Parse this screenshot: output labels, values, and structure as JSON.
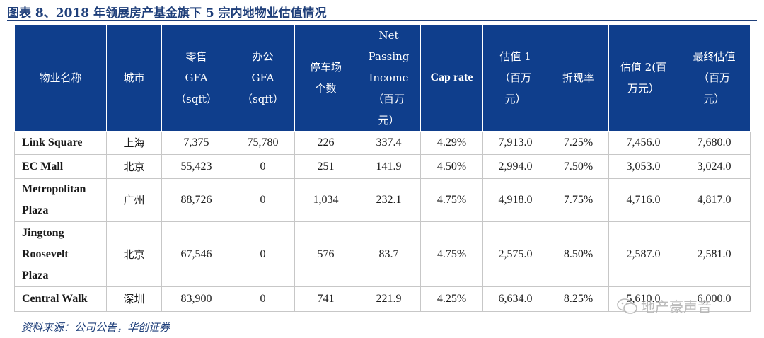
{
  "figure_title": "图表 8、2018 年领展房产基金旗下 5 宗内地物业估值情况",
  "headers": [
    {
      "text": "物业名称",
      "en": false
    },
    {
      "text": "城市",
      "en": false
    },
    {
      "text": "零售\nGFA\n（sqft）",
      "en": false
    },
    {
      "text": "办公\nGFA\n（sqft）",
      "en": false
    },
    {
      "text": "停车场\n个数",
      "en": false
    },
    {
      "text": "Net\nPassing\nIncome\n（百万\n元）",
      "en": false
    },
    {
      "text": "Cap rate",
      "en": true
    },
    {
      "text": "估值 1\n（百万\n元）",
      "en": false
    },
    {
      "text": "折现率",
      "en": false
    },
    {
      "text": "估值 2(百\n万元）",
      "en": false
    },
    {
      "text": "最终估值\n（百万\n元）",
      "en": false
    }
  ],
  "rows": [
    {
      "name": "Link Square",
      "city": "上海",
      "retail_gfa": "7,375",
      "office_gfa": "75,780",
      "parking": "226",
      "npi": "337.4",
      "cap_rate": "4.29%",
      "val1": "7,913.0",
      "discount": "7.25%",
      "val2": "7,456.0",
      "final": "7,680.0"
    },
    {
      "name": "EC Mall",
      "city": "北京",
      "retail_gfa": "55,423",
      "office_gfa": "0",
      "parking": "251",
      "npi": "141.9",
      "cap_rate": "4.50%",
      "val1": "2,994.0",
      "discount": "7.50%",
      "val2": "3,053.0",
      "final": "3,024.0"
    },
    {
      "name": "Metropolitan\nPlaza",
      "city": "广州",
      "retail_gfa": "88,726",
      "office_gfa": "0",
      "parking": "1,034",
      "npi": "232.1",
      "cap_rate": "4.75%",
      "val1": "4,918.0",
      "discount": "7.75%",
      "val2": "4,716.0",
      "final": "4,817.0"
    },
    {
      "name": "Jingtong\nRoosevelt\nPlaza",
      "city": "北京",
      "retail_gfa": "67,546",
      "office_gfa": "0",
      "parking": "576",
      "npi": "83.7",
      "cap_rate": "4.75%",
      "val1": "2,575.0",
      "discount": "8.50%",
      "val2": "2,587.0",
      "final": "2,581.0"
    },
    {
      "name": "Central Walk",
      "city": "深圳",
      "retail_gfa": "83,900",
      "office_gfa": "0",
      "parking": "741",
      "npi": "221.9",
      "cap_rate": "4.25%",
      "val1": "6,634.0",
      "discount": "8.25%",
      "val2": "5,610.0",
      "final": "6,000.0"
    }
  ],
  "source": "资料来源：公司公告，华创证券",
  "watermark": {
    "text": "地产豪声音",
    "icon": "wechat-icon"
  },
  "colors": {
    "header_bg": "#0f3e8c",
    "title": "#1f3f7a"
  }
}
